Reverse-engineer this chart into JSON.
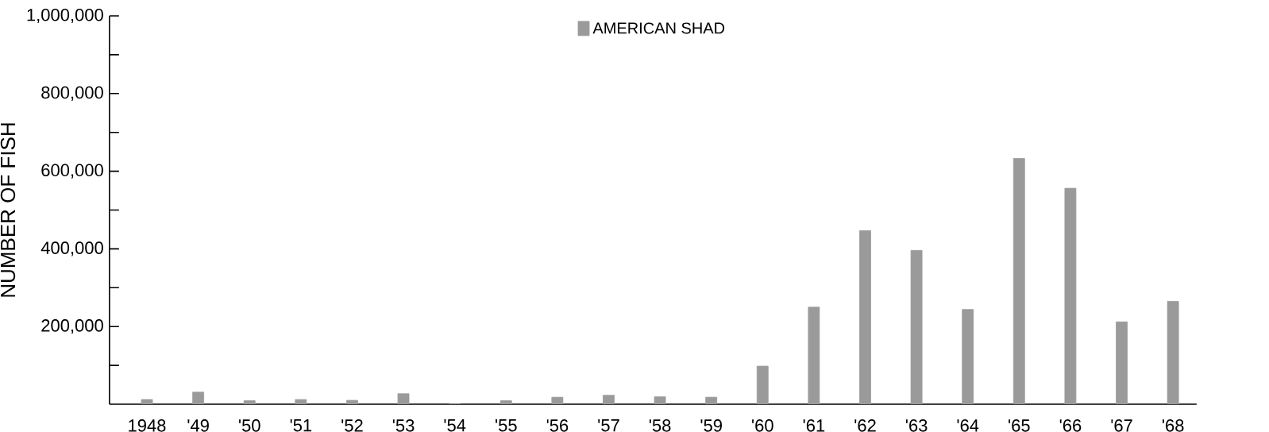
{
  "chart_data": {
    "type": "bar",
    "ylabel": "NUMBER OF FISH",
    "categories": [
      "1948",
      "'49",
      "'50",
      "'51",
      "'52",
      "'53",
      "'54",
      "'55",
      "'56",
      "'57",
      "'58",
      "'59",
      "'60",
      "'61",
      "'62",
      "'63",
      "'64",
      "'65",
      "'66",
      "'67",
      "'68"
    ],
    "series": [
      {
        "name": "AMERICAN SHAD",
        "color": "#9a9a9a",
        "values": [
          12000,
          31000,
          9000,
          12000,
          10000,
          27000,
          0,
          9000,
          18000,
          23000,
          19000,
          18000,
          98000,
          250000,
          447000,
          396000,
          244000,
          633000,
          556000,
          212000,
          265000
        ]
      }
    ],
    "ylim": [
      0,
      1000000
    ],
    "yticks": [
      {
        "value": 100000,
        "label": null
      },
      {
        "value": 200000,
        "label": "200,000"
      },
      {
        "value": 300000,
        "label": null
      },
      {
        "value": 400000,
        "label": "400,000"
      },
      {
        "value": 500000,
        "label": null
      },
      {
        "value": 600000,
        "label": "600,000"
      },
      {
        "value": 700000,
        "label": null
      },
      {
        "value": 800000,
        "label": "800,000"
      },
      {
        "value": 900000,
        "label": null
      },
      {
        "value": 1000000,
        "label": "1,000,000"
      }
    ],
    "grid": false,
    "legend": "top"
  }
}
